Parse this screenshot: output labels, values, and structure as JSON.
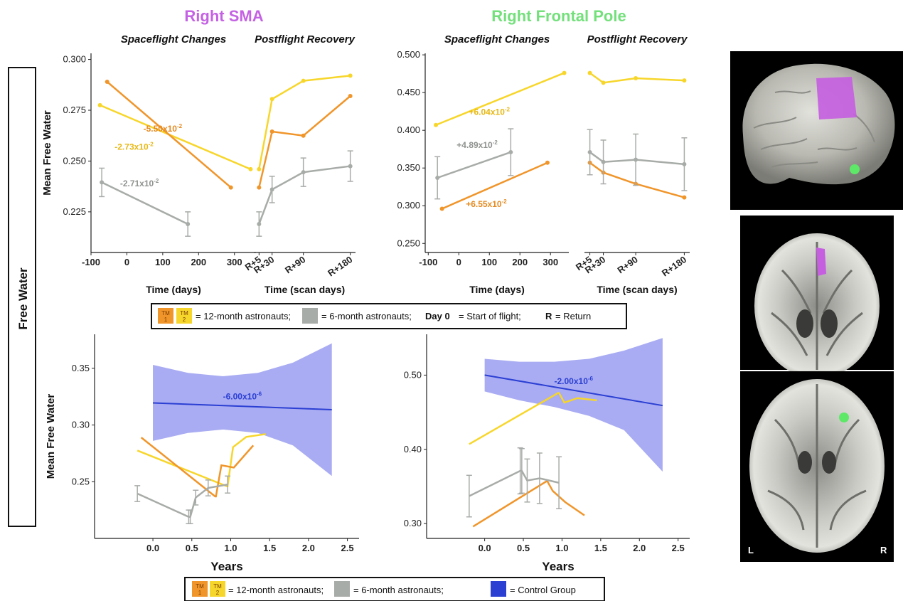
{
  "figure": {
    "row_label": "Free Water",
    "legend_top": {
      "tm1": "TM\n1",
      "tm2": "TM\n2",
      "part1": "= 12-month astronauts;",
      "part2": "= 6-month astronauts;",
      "day0_bold": "Day 0",
      "day0_text": "= Start of flight;",
      "r_bold": "R",
      "r_text": "= Return"
    },
    "legend_bottom": {
      "tm1": "TM\n1",
      "tm2": "TM\n2",
      "part1": "= 12-month astronauts;",
      "part2": "= 6-month astronauts;",
      "part3": "= Control Group"
    },
    "brain_labels": {
      "left": "L",
      "right": "R"
    },
    "colors": {
      "tm1": "#f0952a",
      "tm2": "#f7d62b",
      "six": "#a8aca8",
      "control": "#2b3fd3",
      "control_band": "#9a9ef0",
      "sma_title": "#c462e3",
      "fp_title": "#73e07b"
    }
  },
  "chart_data": [
    {
      "id": "sma_spaceflight",
      "type": "line",
      "group_title": "Right SMA",
      "title": "Spaceflight Changes",
      "xlabel": "Time (days)",
      "ylabel": "Mean Free Water",
      "xlim": [
        -100,
        360
      ],
      "ylim": [
        0.205,
        0.303
      ],
      "xticks": [
        -100,
        0,
        100,
        200,
        300
      ],
      "xtick_labels": [
        "-100",
        "0",
        "100",
        "200",
        "300"
      ],
      "yticks": [
        0.225,
        0.25,
        0.275,
        0.3
      ],
      "ytick_labels": [
        "0.225",
        "0.250",
        "0.275",
        "0.300"
      ],
      "series": [
        {
          "key": "tm2",
          "x": [
            -75,
            345
          ],
          "y": [
            0.2775,
            0.246
          ]
        },
        {
          "key": "tm1",
          "x": [
            -55,
            290
          ],
          "y": [
            0.289,
            0.237
          ]
        },
        {
          "key": "six",
          "x": [
            -70,
            170
          ],
          "y": [
            0.2395,
            0.219
          ],
          "err": [
            0.007,
            0.006
          ]
        }
      ],
      "annotations": [
        {
          "text": "-5.50x10-2",
          "base": "-5.50x10",
          "exp": "-2",
          "key": "tm1",
          "x": 100,
          "y": 0.2645
        },
        {
          "text": "-2.73x10-2",
          "base": "-2.73x10",
          "exp": "-2",
          "key": "tm2",
          "x": 20,
          "y": 0.2555
        },
        {
          "text": "-2.71x10-2",
          "base": "-2.71x10",
          "exp": "-2",
          "key": "six",
          "x": 35,
          "y": 0.2375
        }
      ]
    },
    {
      "id": "sma_recovery",
      "type": "line",
      "title": "Postflight Recovery",
      "xlabel": "Time (scan days)",
      "ylim": [
        0.205,
        0.303
      ],
      "categories": [
        "R+5",
        "R+30",
        "R+90",
        "R+180"
      ],
      "cat_x": [
        5,
        30,
        90,
        180
      ],
      "xlim": [
        -5,
        190
      ],
      "series": [
        {
          "key": "tm2",
          "y": [
            0.246,
            0.2805,
            0.2895,
            0.292
          ]
        },
        {
          "key": "tm1",
          "y": [
            0.237,
            0.2645,
            0.2625,
            0.282
          ]
        },
        {
          "key": "six",
          "y": [
            0.219,
            0.236,
            0.2445,
            0.2475
          ],
          "err": [
            0.006,
            0.0065,
            0.007,
            0.0075
          ]
        }
      ]
    },
    {
      "id": "fp_spaceflight",
      "type": "line",
      "group_title": "Right Frontal Pole",
      "title": "Spaceflight Changes",
      "xlabel": "Time (days)",
      "xlim": [
        -110,
        360
      ],
      "ylim": [
        0.238,
        0.502
      ],
      "xticks": [
        -100,
        0,
        100,
        200,
        300
      ],
      "xtick_labels": [
        "-100",
        "0",
        "100",
        "200",
        "300"
      ],
      "yticks": [
        0.25,
        0.3,
        0.35,
        0.4,
        0.45,
        0.5
      ],
      "ytick_labels": [
        "0.250",
        "0.300",
        "0.350",
        "0.400",
        "0.450",
        "0.500"
      ],
      "series": [
        {
          "key": "tm2",
          "x": [
            -75,
            345
          ],
          "y": [
            0.407,
            0.476
          ]
        },
        {
          "key": "tm1",
          "x": [
            -55,
            290
          ],
          "y": [
            0.296,
            0.357
          ]
        },
        {
          "key": "six",
          "x": [
            -70,
            170
          ],
          "y": [
            0.337,
            0.371
          ],
          "err": [
            0.028,
            0.031
          ]
        }
      ],
      "annotations": [
        {
          "text": "+6.04x10-2",
          "base": "+6.04x10",
          "exp": "-2",
          "key": "tm2",
          "x": 100,
          "y": 0.4205
        },
        {
          "text": "+4.89x10-2",
          "base": "+4.89x10",
          "exp": "-2",
          "key": "six",
          "x": 60,
          "y": 0.3765
        },
        {
          "text": "+6.55x10-2",
          "base": "+6.55x10",
          "exp": "-2",
          "key": "tm1",
          "x": 90,
          "y": 0.2985
        }
      ]
    },
    {
      "id": "fp_recovery",
      "type": "line",
      "title": "Postflight Recovery",
      "xlabel": "Time (scan days)",
      "ylim": [
        0.238,
        0.502
      ],
      "categories": [
        "R+5",
        "R+30",
        "R+90",
        "R+180"
      ],
      "cat_x": [
        5,
        30,
        90,
        180
      ],
      "xlim": [
        -5,
        190
      ],
      "series": [
        {
          "key": "tm2",
          "y": [
            0.476,
            0.463,
            0.469,
            0.466
          ]
        },
        {
          "key": "tm1",
          "y": [
            0.357,
            0.344,
            0.329,
            0.311
          ]
        },
        {
          "key": "six",
          "y": [
            0.371,
            0.358,
            0.361,
            0.355
          ],
          "err": [
            0.03,
            0.029,
            0.034,
            0.035
          ]
        }
      ]
    },
    {
      "id": "sma_years",
      "type": "line",
      "xlabel": "Years",
      "ylabel": "Mean Free Water",
      "xlim": [
        -0.75,
        2.65
      ],
      "ylim": [
        0.2,
        0.38
      ],
      "xticks": [
        0,
        0.5,
        1,
        1.5,
        2,
        2.5
      ],
      "xtick_labels": [
        "0.0",
        "0.5",
        "1.0",
        "1.5",
        "2.0",
        "2.5"
      ],
      "yticks": [
        0.25,
        0.3,
        0.35
      ],
      "ytick_labels": [
        "0.25",
        "0.30",
        "0.35"
      ],
      "control": {
        "line_x": [
          0,
          2.3
        ],
        "line_y": [
          0.3195,
          0.3135
        ],
        "band_x": [
          0,
          0.45,
          0.9,
          1.35,
          1.8,
          2.3
        ],
        "band_upper": [
          0.353,
          0.346,
          0.343,
          0.346,
          0.355,
          0.372
        ],
        "band_lower": [
          0.286,
          0.293,
          0.296,
          0.293,
          0.282,
          0.255
        ],
        "label": "-6.00x10-6",
        "label_base": "-6.00x10",
        "label_exp": "-6",
        "label_x": 1.15,
        "label_y": 0.3225
      },
      "series": [
        {
          "key": "tm2",
          "x": [
            -0.2,
            0.95,
            0.96,
            1.03,
            1.2,
            1.45
          ],
          "y": [
            0.2775,
            0.246,
            0.246,
            0.2805,
            0.2895,
            0.292
          ]
        },
        {
          "key": "tm1",
          "x": [
            -0.15,
            0.8,
            0.81,
            0.88,
            1.04,
            1.29
          ],
          "y": [
            0.289,
            0.237,
            0.237,
            0.2645,
            0.2625,
            0.282
          ]
        },
        {
          "key": "six",
          "x": [
            -0.2,
            0.46,
            0.48,
            0.55,
            0.71,
            0.96
          ],
          "y": [
            0.2395,
            0.219,
            0.219,
            0.236,
            0.2445,
            0.2475
          ],
          "err": [
            0.007,
            0.006,
            0.006,
            0.0065,
            0.007,
            0.0075
          ]
        }
      ]
    },
    {
      "id": "fp_years",
      "type": "line",
      "xlabel": "Years",
      "xlim": [
        -0.75,
        2.65
      ],
      "ylim": [
        0.28,
        0.555
      ],
      "xticks": [
        0,
        0.5,
        1,
        1.5,
        2,
        2.5
      ],
      "xtick_labels": [
        "0.0",
        "0.5",
        "1.0",
        "1.5",
        "2.0",
        "2.5"
      ],
      "yticks": [
        0.3,
        0.4,
        0.5
      ],
      "ytick_labels": [
        "0.30",
        "0.40",
        "0.50"
      ],
      "control": {
        "line_x": [
          0,
          2.3
        ],
        "line_y": [
          0.5,
          0.459
        ],
        "band_x": [
          0,
          0.45,
          0.9,
          1.35,
          1.8,
          2.3
        ],
        "band_upper": [
          0.522,
          0.518,
          0.518,
          0.522,
          0.533,
          0.55
        ],
        "band_lower": [
          0.478,
          0.466,
          0.457,
          0.445,
          0.426,
          0.37
        ],
        "label": "-2.00x10-6",
        "label_base": "-2.00x10",
        "label_exp": "-6",
        "label_x": 1.15,
        "label_y": 0.488
      },
      "series": [
        {
          "key": "tm2",
          "x": [
            -0.2,
            0.95,
            0.96,
            1.03,
            1.2,
            1.45
          ],
          "y": [
            0.407,
            0.476,
            0.476,
            0.463,
            0.469,
            0.466
          ]
        },
        {
          "key": "tm1",
          "x": [
            -0.15,
            0.8,
            0.81,
            0.88,
            1.04,
            1.29
          ],
          "y": [
            0.296,
            0.357,
            0.357,
            0.344,
            0.329,
            0.311
          ]
        },
        {
          "key": "six",
          "x": [
            -0.2,
            0.46,
            0.48,
            0.55,
            0.71,
            0.96
          ],
          "y": [
            0.337,
            0.371,
            0.371,
            0.358,
            0.361,
            0.355
          ],
          "err": [
            0.028,
            0.031,
            0.03,
            0.029,
            0.034,
            0.035
          ]
        }
      ]
    }
  ]
}
